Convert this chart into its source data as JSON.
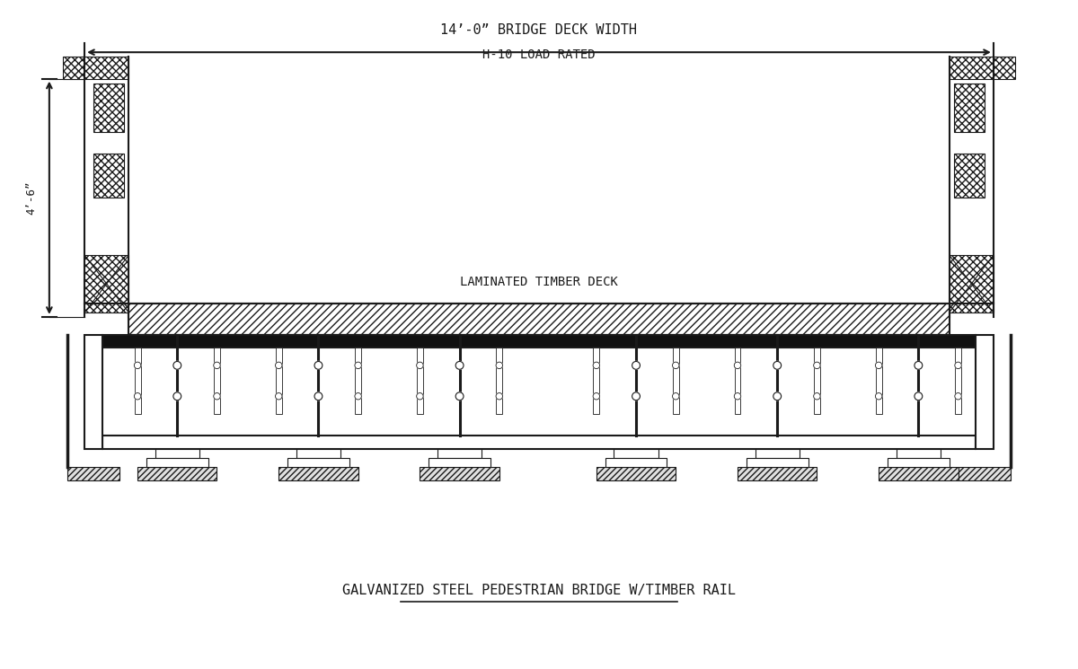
{
  "bg_color": "#ffffff",
  "line_color": "#1a1a1a",
  "title": "GALVANIZED STEEL PEDESTRIAN BRIDGE W/TIMBER RAIL",
  "label_deck_width": "14’-0” BRIDGE DECK WIDTH",
  "label_load": "H-10 LOAD RATED",
  "label_deck": "LAMINATED TIMBER DECK",
  "label_height": "4’-6”",
  "canvas_xlim": [
    0,
    120
  ],
  "canvas_ylim": [
    0,
    75
  ]
}
